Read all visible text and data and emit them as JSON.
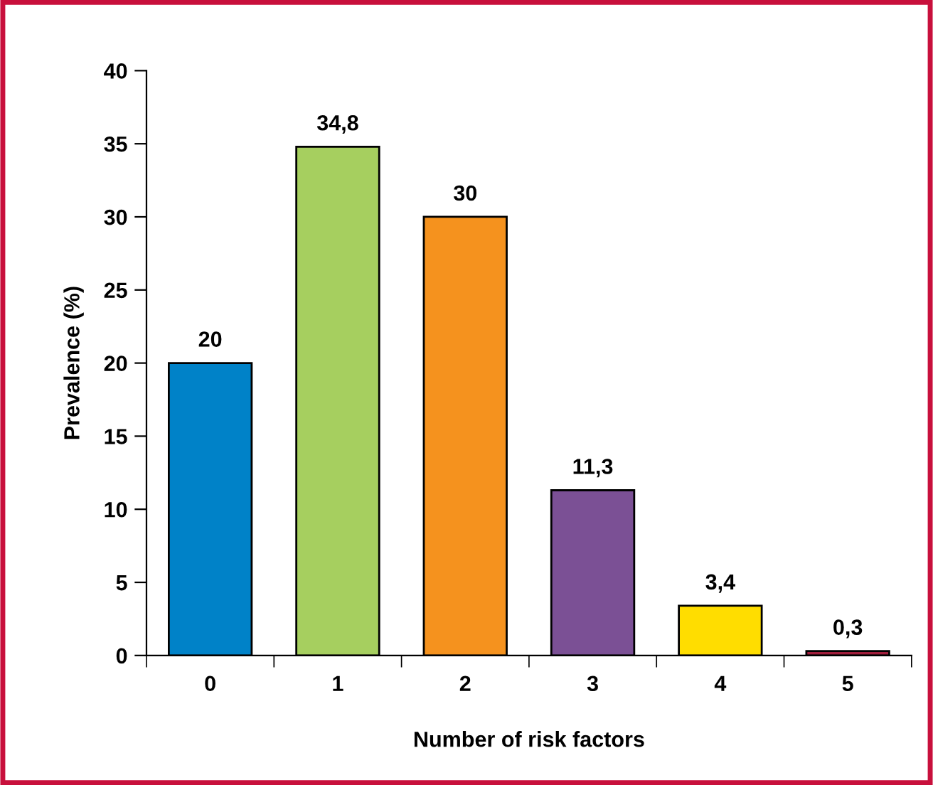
{
  "chart_data": {
    "type": "bar",
    "xlabel": "Number of risk factors",
    "ylabel": "Prevalence (%)",
    "categories": [
      "0",
      "1",
      "2",
      "3",
      "4",
      "5"
    ],
    "values": [
      20,
      34.8,
      30,
      11.3,
      3.4,
      0.3
    ],
    "value_labels": [
      "20",
      "34,8",
      "30",
      "11,3",
      "3,4",
      "0,3"
    ],
    "colors": [
      "#0082c8",
      "#a6cf5f",
      "#f5921e",
      "#7b5095",
      "#ffdd00",
      "#a01e3c"
    ],
    "ylim": [
      0,
      40
    ],
    "yticks": [
      0,
      5,
      10,
      15,
      20,
      25,
      30,
      35,
      40
    ],
    "grid": false
  }
}
